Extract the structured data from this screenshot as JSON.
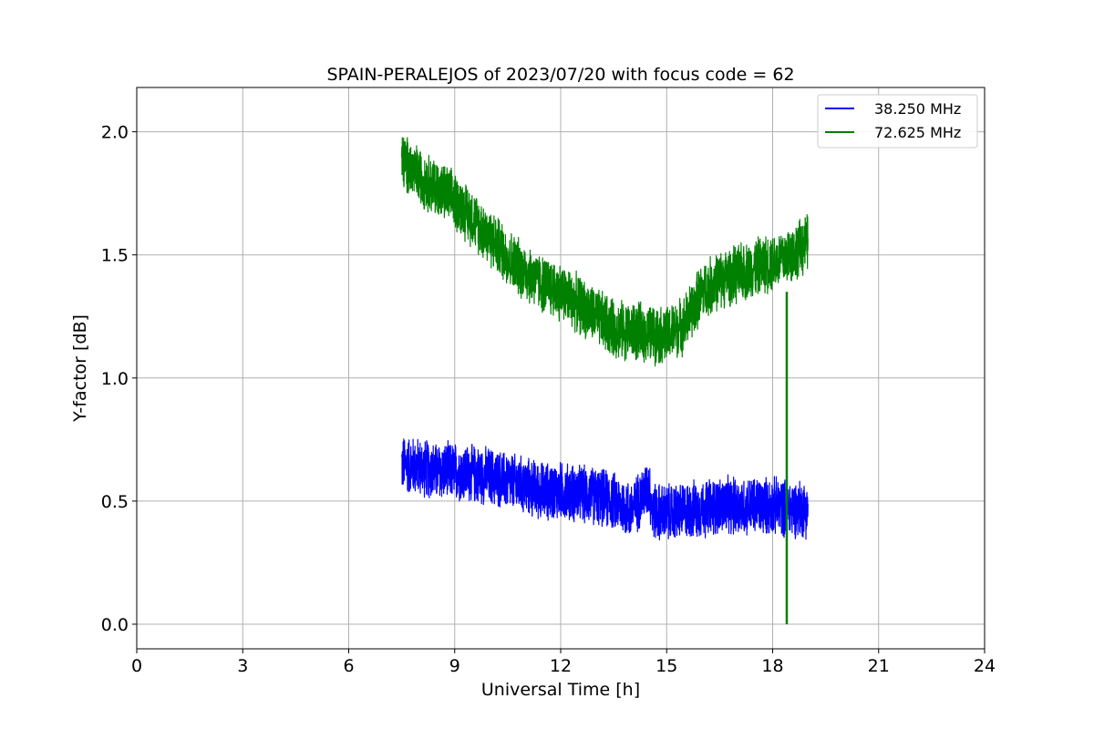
{
  "chart_data": {
    "type": "line",
    "title": "SPAIN-PERALEJOS of 2023/07/20 with focus code = 62",
    "xlabel": "Universal Time [h]",
    "ylabel": "Y-factor [dB]",
    "xlim": [
      0,
      24
    ],
    "ylim": [
      -0.1,
      2.18
    ],
    "xticks": [
      "0",
      "3",
      "6",
      "9",
      "12",
      "15",
      "18",
      "21",
      "24"
    ],
    "yticks": [
      "0.0",
      "0.5",
      "1.0",
      "1.5",
      "2.0"
    ],
    "grid": true,
    "legend_position": "top-right",
    "series": [
      {
        "name": "38.250 MHz",
        "color": "#0000ff",
        "x": [
          7.5,
          8,
          8.5,
          9,
          9.5,
          10,
          10.5,
          11,
          11.5,
          12,
          12.5,
          13,
          13.5,
          14,
          14.5,
          14.6,
          15,
          15.5,
          16,
          16.5,
          17,
          17.5,
          18,
          18.5,
          19
        ],
        "y": [
          0.65,
          0.64,
          0.62,
          0.62,
          0.61,
          0.6,
          0.58,
          0.56,
          0.54,
          0.54,
          0.53,
          0.52,
          0.5,
          0.46,
          0.56,
          0.46,
          0.45,
          0.46,
          0.47,
          0.48,
          0.48,
          0.48,
          0.48,
          0.47,
          0.47
        ],
        "noise": 0.2
      },
      {
        "name": "72.625 MHz",
        "color": "#008000",
        "x": [
          7.5,
          8,
          8.5,
          9,
          9.5,
          10,
          10.5,
          11,
          11.5,
          12,
          12.5,
          13,
          13.5,
          14,
          14.5,
          15,
          15.5,
          16,
          16.5,
          17,
          17.5,
          18,
          18.5,
          19
        ],
        "y": [
          1.88,
          1.82,
          1.77,
          1.72,
          1.65,
          1.57,
          1.49,
          1.43,
          1.38,
          1.35,
          1.3,
          1.25,
          1.2,
          1.19,
          1.18,
          1.17,
          1.22,
          1.35,
          1.4,
          1.42,
          1.45,
          1.47,
          1.5,
          1.55
        ],
        "noise": 0.2
      }
    ],
    "annotations": [
      {
        "series": "72.625 MHz",
        "x": 18.4,
        "y_from": 1.35,
        "y_to": 0.0
      }
    ]
  }
}
